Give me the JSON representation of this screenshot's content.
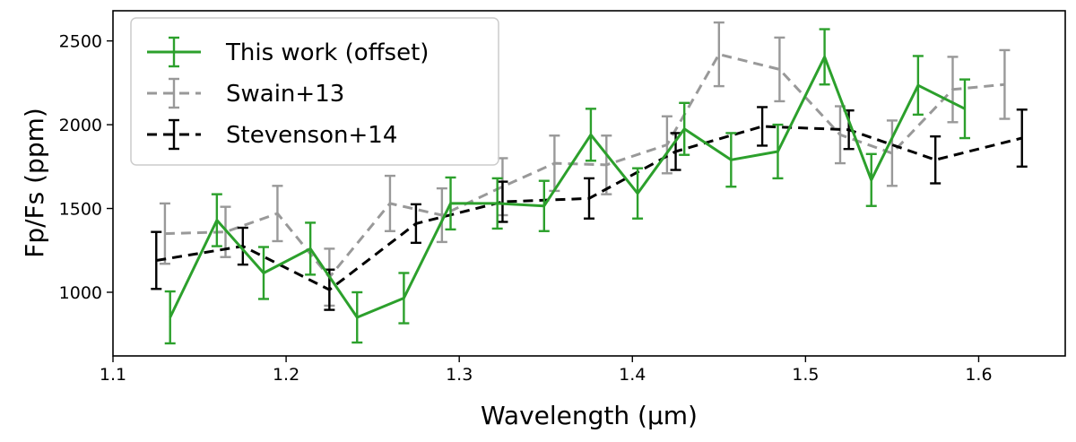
{
  "chart_data": {
    "type": "line",
    "xlabel": "Wavelength (μm)",
    "ylabel": "Fp/Fs (ppm)",
    "xlim": [
      1.1,
      1.65
    ],
    "ylim": [
      620,
      2680
    ],
    "xticks": [
      "1.1",
      "1.2",
      "1.3",
      "1.4",
      "1.5",
      "1.6"
    ],
    "yticks": [
      "1000",
      "1500",
      "2000",
      "2500"
    ],
    "legend_position": "top-left",
    "series": [
      {
        "name": "Swain+13",
        "color": "#999999",
        "dashed": true,
        "x": [
          1.13,
          1.165,
          1.195,
          1.225,
          1.26,
          1.29,
          1.325,
          1.355,
          1.385,
          1.42,
          1.45,
          1.485,
          1.52,
          1.55,
          1.585,
          1.615
        ],
        "y": [
          1350,
          1360,
          1470,
          1090,
          1530,
          1460,
          1630,
          1770,
          1760,
          1880,
          2420,
          2330,
          1940,
          1830,
          2210,
          2240
        ],
        "err": [
          180,
          150,
          165,
          170,
          165,
          160,
          170,
          165,
          175,
          170,
          190,
          190,
          170,
          195,
          195,
          205
        ]
      },
      {
        "name": "Stevenson+14",
        "color": "#000000",
        "dashed": true,
        "x": [
          1.125,
          1.175,
          1.225,
          1.275,
          1.325,
          1.375,
          1.425,
          1.475,
          1.525,
          1.575,
          1.625
        ],
        "y": [
          1190,
          1275,
          1015,
          1410,
          1540,
          1560,
          1840,
          1990,
          1970,
          1790,
          1920
        ],
        "err": [
          170,
          110,
          120,
          115,
          120,
          120,
          110,
          115,
          115,
          140,
          170
        ]
      },
      {
        "name": "This work (offset)",
        "color": "#2ca02c",
        "dashed": false,
        "x": [
          1.133,
          1.16,
          1.187,
          1.214,
          1.241,
          1.268,
          1.295,
          1.322,
          1.349,
          1.376,
          1.403,
          1.43,
          1.457,
          1.484,
          1.511,
          1.538,
          1.565,
          1.592
        ],
        "y": [
          850,
          1430,
          1115,
          1260,
          850,
          965,
          1530,
          1530,
          1515,
          1940,
          1590,
          1975,
          1790,
          1840,
          2405,
          1670,
          2235,
          2095
        ],
        "err": [
          155,
          155,
          155,
          155,
          150,
          150,
          155,
          150,
          150,
          155,
          150,
          155,
          160,
          160,
          165,
          155,
          175,
          175
        ]
      }
    ]
  }
}
